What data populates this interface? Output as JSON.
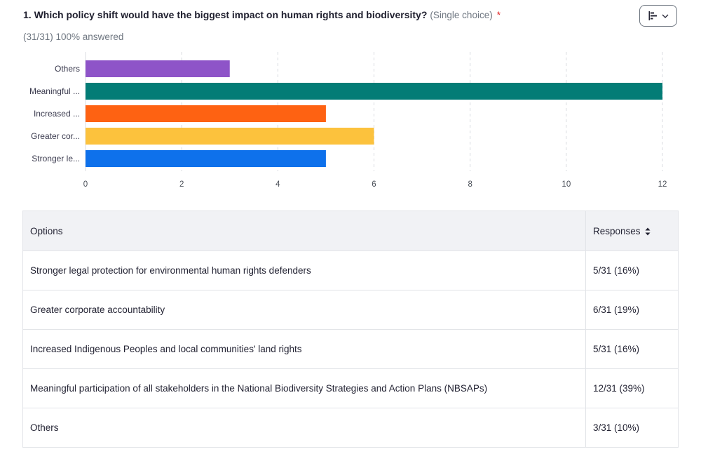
{
  "question": {
    "title": "1. Which policy shift would have the biggest impact on human rights and biodiversity?",
    "type": "(Single choice)",
    "required_mark": "*",
    "answered": "(31/31) 100% answered",
    "chart_toggle_icon": "bar-chart-icon"
  },
  "chart_data": {
    "type": "bar",
    "orientation": "horizontal",
    "categories": [
      "Others",
      "Meaningful ...",
      "Increased ...",
      "Greater cor...",
      "Stronger le..."
    ],
    "values": [
      3,
      12,
      5,
      6,
      5
    ],
    "colors": [
      "#8e54c8",
      "#037c76",
      "#fe6212",
      "#fcc23d",
      "#0e71eb"
    ],
    "xlim": [
      0,
      12
    ],
    "xticks": [
      "0",
      "2",
      "4",
      "6",
      "8",
      "10",
      "12"
    ],
    "grid": true,
    "title": "",
    "xlabel": "",
    "ylabel": ""
  },
  "table": {
    "headers": {
      "options": "Options",
      "responses": "Responses"
    },
    "rows": [
      {
        "option": "Stronger legal protection for environmental human rights defenders",
        "responses": "5/31 (16%)"
      },
      {
        "option": "Greater corporate accountability",
        "responses": "6/31 (19%)"
      },
      {
        "option": "Increased Indigenous Peoples and local communities' land rights",
        "responses": "5/31 (16%)"
      },
      {
        "option": "Meaningful participation of all stakeholders in the National Biodiversity Strategies and Action Plans (NBSAPs)",
        "responses": "12/31 (39%)"
      },
      {
        "option": "Others",
        "responses": "3/31 (10%)"
      }
    ]
  }
}
